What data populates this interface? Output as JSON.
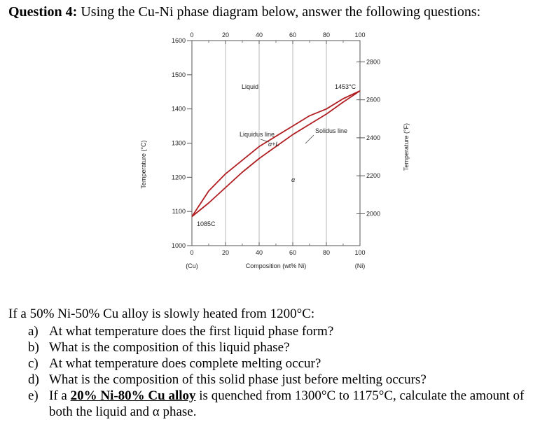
{
  "header": {
    "question_label": "Question 4:",
    "question_text": " Using the Cu-Ni phase diagram below, answer the following questions:"
  },
  "chart_data": {
    "type": "line",
    "xlabel": "Composition (wt% Ni)",
    "ylabel_left": "Temperature (°C)",
    "ylabel_right": "Temperature (°F)",
    "x_ticks_top": [
      "0",
      "20",
      "40",
      "60",
      "80",
      "100"
    ],
    "x_ticks_bottom": [
      "0",
      "20",
      "40",
      "60",
      "80",
      "100"
    ],
    "x_end_labels": [
      "(Cu)",
      "(Ni)"
    ],
    "y_ticks_left": [
      "1600",
      "1500",
      "1400",
      "1300",
      "1200",
      "1100",
      "1000"
    ],
    "y_ticks_right": [
      "2800",
      "2600",
      "2400",
      "2200",
      "2000"
    ],
    "xlim": [
      0,
      100
    ],
    "ylim": [
      1000,
      1600
    ],
    "region_labels": {
      "liquid": "Liquid",
      "liquidus": "Liquidus line",
      "two_phase": "α+L",
      "solidus": "Solidus line",
      "alpha": "α",
      "ni_melt": "1453°C",
      "cu_melt": "1085C"
    },
    "series": [
      {
        "x": [
          0,
          10,
          20,
          30,
          40,
          50,
          60,
          70,
          80,
          90,
          100
        ],
        "y": [
          1085,
          1160,
          1210,
          1250,
          1290,
          1320,
          1350,
          1380,
          1400,
          1430,
          1453
        ]
      },
      {
        "x": [
          0,
          10,
          20,
          30,
          40,
          50,
          60,
          70,
          80,
          90,
          100
        ],
        "y": [
          1085,
          1125,
          1170,
          1215,
          1255,
          1290,
          1325,
          1355,
          1385,
          1420,
          1453
        ]
      }
    ]
  },
  "body": {
    "intro": "If a 50% Ni-50% Cu alloy is slowly heated from 1200°C:",
    "questions": [
      {
        "label": "a)",
        "text": "At what temperature does the first liquid phase form?"
      },
      {
        "label": "b)",
        "text": "What is the composition of this liquid phase?"
      },
      {
        "label": "c)",
        "text": "At what temperature does complete melting occur?"
      },
      {
        "label": "d)",
        "text": "What is the composition of this solid phase just before melting occurs?"
      }
    ],
    "q5": {
      "label": "e)",
      "pre": "If a ",
      "underlined": "20% Ni-80% Cu alloy",
      "post": " is quenched from 1300°C to 1175°C, calculate the amount of",
      "line2": "both the liquid and α phase."
    }
  }
}
